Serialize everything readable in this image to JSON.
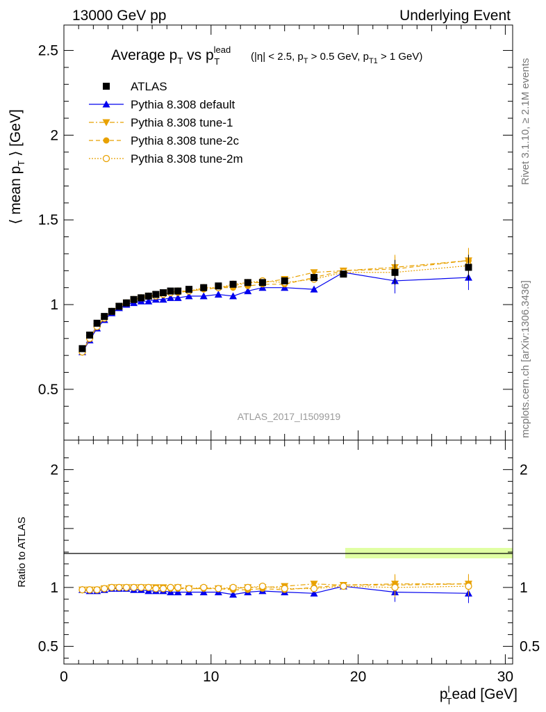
{
  "header": {
    "left": "13000 GeV pp",
    "right": "Underlying Event"
  },
  "side_labels": {
    "rivet": "Rivet 3.1.10, ≥ 2.1M events",
    "mcplots": "mcplots.cern.ch [arXiv:1306.3436]"
  },
  "watermark": "ATLAS_2017_I1509919",
  "colors": {
    "atlas": "#000000",
    "default": "#0000ee",
    "tune": "#e8a100",
    "band": "#ccff66"
  },
  "chart_data": [
    {
      "type": "scatter",
      "title_main": "Average p",
      "title_sub1": "T",
      "title_mid": " vs p",
      "title_sup": "lead",
      "title_sub2": "T",
      "title_cut": "(|η| < 2.5, p",
      "title_cut_sub1": "T",
      "title_cut2": " > 0.5 GeV, p",
      "title_cut_sub2": "T1",
      "title_cut3": " > 1 GeV)",
      "ylabel_pre": "⟨ mean p",
      "ylabel_sub": "T",
      "ylabel_post": " ⟩ [GeV]",
      "ylim": [
        0.2,
        2.65
      ],
      "xlim": [
        0,
        30.5
      ],
      "yticks": [
        0.5,
        1,
        1.5,
        2,
        2.5
      ],
      "ytick_labels": [
        "0.5",
        "1",
        "1.5",
        "2",
        "2.5"
      ],
      "x": [
        1.25,
        1.75,
        2.25,
        2.75,
        3.25,
        3.75,
        4.25,
        4.75,
        5.25,
        5.75,
        6.25,
        6.75,
        7.25,
        7.75,
        8.5,
        9.5,
        10.5,
        11.5,
        12.5,
        13.5,
        15.0,
        17.0,
        19.0,
        22.5,
        27.5
      ],
      "series": [
        {
          "name": "ATLAS",
          "marker": "square",
          "values": [
            0.74,
            0.82,
            0.89,
            0.93,
            0.96,
            0.99,
            1.01,
            1.03,
            1.04,
            1.05,
            1.06,
            1.07,
            1.08,
            1.08,
            1.09,
            1.1,
            1.11,
            1.12,
            1.13,
            1.13,
            1.14,
            1.16,
            1.18,
            1.19,
            1.22
          ]
        },
        {
          "name": "Pythia 8.308 default",
          "marker": "triangle-up",
          "values": [
            0.72,
            0.79,
            0.86,
            0.91,
            0.95,
            0.98,
            1.0,
            1.01,
            1.02,
            1.02,
            1.03,
            1.03,
            1.04,
            1.04,
            1.05,
            1.05,
            1.06,
            1.05,
            1.08,
            1.1,
            1.1,
            1.09,
            1.19,
            1.14,
            1.16
          ]
        },
        {
          "name": "Pythia 8.308 tune-1",
          "marker": "triangle-down",
          "values": [
            0.72,
            0.8,
            0.87,
            0.92,
            0.96,
            0.99,
            1.01,
            1.03,
            1.04,
            1.05,
            1.06,
            1.07,
            1.07,
            1.08,
            1.08,
            1.09,
            1.1,
            1.11,
            1.13,
            1.13,
            1.15,
            1.19,
            1.2,
            1.22,
            1.26
          ]
        },
        {
          "name": "Pythia 8.308 tune-2c",
          "marker": "circle",
          "values": [
            0.72,
            0.8,
            0.87,
            0.92,
            0.96,
            0.99,
            1.01,
            1.03,
            1.04,
            1.05,
            1.05,
            1.06,
            1.07,
            1.07,
            1.08,
            1.09,
            1.1,
            1.1,
            1.11,
            1.12,
            1.12,
            1.16,
            1.2,
            1.21,
            1.26
          ]
        },
        {
          "name": "Pythia 8.308 tune-2m",
          "marker": "open-circle",
          "values": [
            0.72,
            0.8,
            0.87,
            0.92,
            0.96,
            0.99,
            1.01,
            1.03,
            1.04,
            1.05,
            1.05,
            1.06,
            1.07,
            1.08,
            1.08,
            1.1,
            1.1,
            1.12,
            1.13,
            1.14,
            1.13,
            1.15,
            1.19,
            1.19,
            1.23
          ]
        }
      ]
    },
    {
      "type": "scatter",
      "ylabel": "Ratio to ATLAS",
      "xlabel_pre": "p",
      "xlabel_sub": "T",
      "xlabel_post": "ead [GeV]",
      "xlabel_sup": "l",
      "ylim": [
        0.35,
        2.25
      ],
      "xlim": [
        0,
        30.5
      ],
      "yticks": [
        0.5,
        1,
        2
      ],
      "ytick_labels": [
        "0.5",
        "1",
        "2"
      ],
      "xticks": [
        0,
        10,
        20,
        30
      ],
      "xtick_labels": [
        "0",
        "10",
        "20",
        "30"
      ],
      "x": [
        1.25,
        1.75,
        2.25,
        2.75,
        3.25,
        3.75,
        4.25,
        4.75,
        5.25,
        5.75,
        6.25,
        6.75,
        7.25,
        7.75,
        8.5,
        9.5,
        10.5,
        11.5,
        12.5,
        13.5,
        15.0,
        17.0,
        19.0,
        22.5,
        27.5
      ],
      "series": [
        {
          "name": "Pythia 8.308 default",
          "values": [
            0.98,
            0.97,
            0.97,
            0.98,
            0.99,
            0.99,
            0.99,
            0.98,
            0.98,
            0.97,
            0.97,
            0.97,
            0.96,
            0.96,
            0.96,
            0.96,
            0.96,
            0.94,
            0.96,
            0.97,
            0.96,
            0.95,
            1.01,
            0.96,
            0.95
          ]
        },
        {
          "name": "Pythia 8.308 tune-1",
          "values": [
            0.98,
            0.98,
            0.98,
            0.99,
            1.0,
            1.0,
            1.0,
            1.0,
            1.0,
            1.0,
            1.0,
            1.0,
            0.99,
            1.0,
            0.99,
            0.99,
            0.99,
            0.99,
            1.0,
            1.0,
            1.01,
            1.03,
            1.02,
            1.03,
            1.03
          ]
        },
        {
          "name": "Pythia 8.308 tune-2c",
          "values": [
            0.98,
            0.98,
            0.98,
            0.99,
            1.0,
            1.0,
            1.0,
            1.0,
            1.0,
            1.0,
            0.99,
            0.99,
            0.99,
            0.99,
            0.99,
            0.99,
            0.99,
            0.98,
            0.98,
            0.99,
            0.98,
            1.0,
            1.02,
            1.02,
            1.03
          ]
        },
        {
          "name": "Pythia 8.308 tune-2m",
          "values": [
            0.98,
            0.98,
            0.98,
            0.99,
            1.0,
            1.0,
            1.0,
            1.0,
            1.0,
            1.0,
            0.99,
            0.99,
            1.0,
            1.0,
            0.99,
            1.0,
            0.99,
            1.0,
            1.0,
            1.01,
            0.99,
            0.99,
            1.01,
            1.0,
            1.01
          ]
        }
      ]
    }
  ]
}
